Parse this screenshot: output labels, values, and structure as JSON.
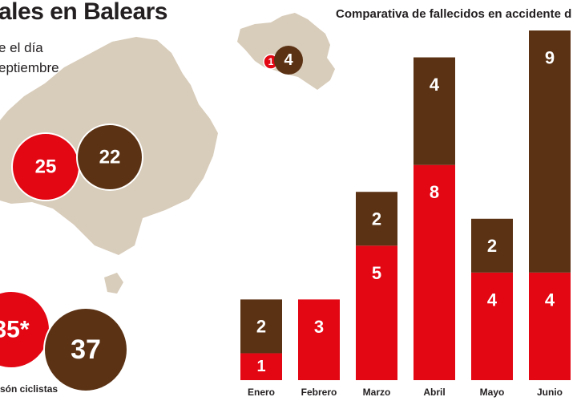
{
  "header": {
    "title": "ales en Balears",
    "subtitle_line1": "e el día",
    "subtitle_line2": "eptiembre"
  },
  "colors": {
    "red": "#e30613",
    "brown": "#5b3214",
    "island": "#d8ccba"
  },
  "islands": {
    "menorca": {
      "red_value": "1",
      "brown_value": "4"
    },
    "mallorca": {
      "red_value": "25",
      "brown_value": "22"
    },
    "totals": {
      "red_value": "35*",
      "brown_value": "37"
    }
  },
  "footnote": "són ciclistas",
  "chart_data": {
    "type": "bar",
    "stacked": true,
    "title": "Comparativa de fallecidos en accidente d",
    "categories": [
      "Enero",
      "Febrero",
      "Marzo",
      "Abril",
      "Mayo",
      "Junio"
    ],
    "series": [
      {
        "color": "#e30613",
        "values": [
          1,
          3,
          5,
          8,
          4,
          4
        ]
      },
      {
        "color": "#5b3214",
        "values": [
          2,
          0,
          2,
          4,
          2,
          9
        ]
      }
    ],
    "ylim": [
      0,
      13
    ],
    "grid": false,
    "legend": "none"
  }
}
